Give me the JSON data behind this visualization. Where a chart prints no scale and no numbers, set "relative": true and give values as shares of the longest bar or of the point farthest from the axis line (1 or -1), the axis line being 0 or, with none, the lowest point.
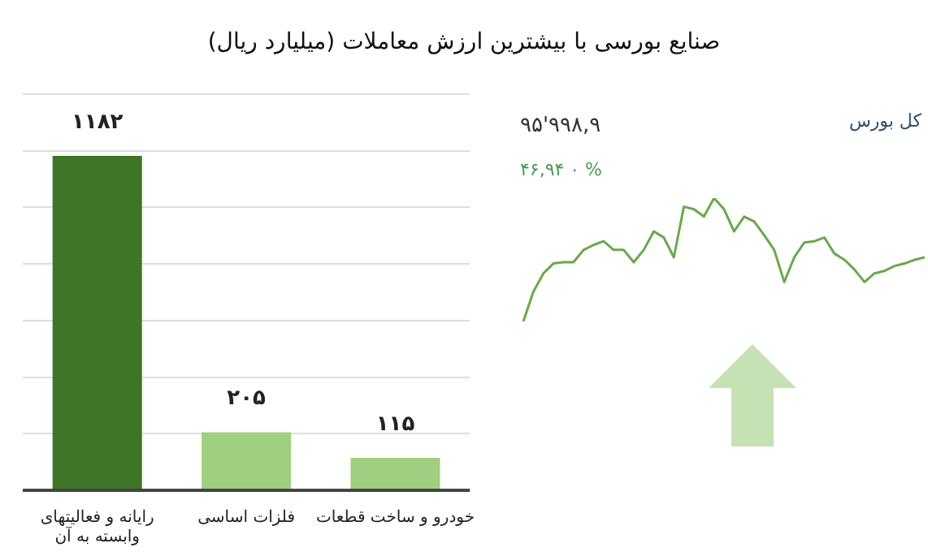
{
  "chart_data": [
    {
      "type": "bar",
      "title": "صنایع بورسی با بیشترین ارزش معاملات  (میلیارد ریال)",
      "categories": [
        "رایانه و فعالیتهای وابسته به آن",
        "فلزات اساسی",
        "خودرو و ساخت قطعات"
      ],
      "values": [
        1182,
        205,
        115
      ],
      "colors": [
        "#3f7526",
        "#9fcf7f",
        "#9fcf7f"
      ],
      "value_labels": [
        "۱۱۸۲",
        "۲۰۵",
        "۱۱۵"
      ],
      "grid": "y",
      "tick_labels": "x",
      "legend": false
    },
    {
      "type": "line",
      "title": "کل بورس",
      "annotations": [
        "۹۵'۹۹۸,۹",
        "۴۶,۹۴  ۰ %"
      ],
      "relative": true,
      "marker": "none",
      "legend": false,
      "tick_labels": false,
      "categories": [
        null,
        null,
        null,
        null,
        null,
        null,
        null,
        null,
        null,
        null,
        null,
        null,
        null,
        null,
        null,
        null,
        null,
        null,
        null,
        null,
        null,
        null,
        null,
        null,
        null,
        null,
        null,
        null,
        null,
        null,
        null,
        null,
        null,
        null,
        null,
        null,
        null,
        null,
        null,
        null,
        null
      ],
      "series": [
        {
          "color": "#6aa84f",
          "values": [
            0,
            0.24,
            0.39,
            0.47,
            0.48,
            0.48,
            0.58,
            0.62,
            0.65,
            0.58,
            0.58,
            0.48,
            0.58,
            0.73,
            0.68,
            0.52,
            0.93,
            0.91,
            0.85,
            1,
            0.91,
            0.73,
            0.85,
            0.81,
            0.7,
            0.58,
            0.32,
            0.52,
            0.64,
            0.65,
            0.68,
            0.55,
            0.5,
            0.42,
            0.32,
            0.39,
            0.41,
            0.45,
            0.47,
            0.5,
            0.52
          ]
        }
      ]
    }
  ]
}
